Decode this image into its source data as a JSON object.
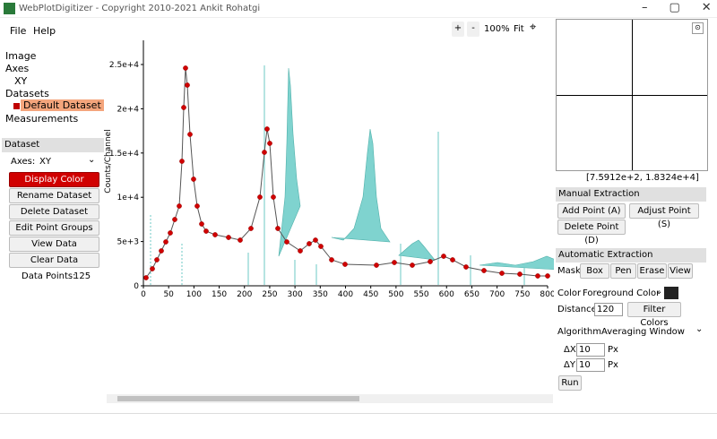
{
  "window": {
    "title": "WebPlotDigitizer - Copyright 2010-2021 Ankit Rohatgi"
  },
  "menu": [
    "File",
    "Help"
  ],
  "toolbar": {
    "zoom_in": "+",
    "zoom_out": "-",
    "zoom": "100%",
    "fit": "Fit"
  },
  "tree": {
    "image": "Image",
    "axes": "Axes",
    "axes_item": "XY",
    "datasets": "Datasets",
    "dataset_item": "Default Dataset",
    "measurements": "Measurements"
  },
  "dataset_panel": {
    "header": "Dataset",
    "axes_label": "Axes:",
    "axes_value": "XY",
    "buttons": [
      "Display Color",
      "Rename Dataset",
      "Delete Dataset",
      "Edit Point Groups",
      "View Data",
      "Clear Data"
    ],
    "data_points_label": "Data Points:",
    "data_points": 125
  },
  "plot_image": {
    "y_label": "Counts/Channel",
    "yticks": [
      "2.5e+4",
      "2e+4",
      "1.5e+4",
      "1e+4",
      "5e+3",
      "0"
    ],
    "xticks": [
      "0",
      "50",
      "100",
      "150",
      "200",
      "250",
      "300",
      "350",
      "400",
      "450",
      "500",
      "550",
      "600",
      "650",
      "700",
      "750",
      "800"
    ]
  },
  "magnifier": {
    "coords": "[7.5912e+2, 1.8324e+4]"
  },
  "manual": {
    "header": "Manual Extraction",
    "buttons": [
      "Add Point (A)",
      "Adjust Point (S)",
      "Delete Point (D)"
    ]
  },
  "automatic": {
    "header": "Automatic Extraction",
    "mask_label": "Mask",
    "mask_buttons": [
      "Box",
      "Pen",
      "Erase",
      "View"
    ],
    "color_label": "Color",
    "color_value": "Foreground Color",
    "distance_label": "Distance",
    "distance": 120,
    "filter": "Filter Colors",
    "algorithm_label": "Algorithm",
    "algorithm": "Averaging Window",
    "dx_label": "ΔX",
    "dx": 10,
    "dx_unit": "Px",
    "dy_label": "ΔY",
    "dy": 10,
    "dy_unit": "Px",
    "run": "Run"
  }
}
